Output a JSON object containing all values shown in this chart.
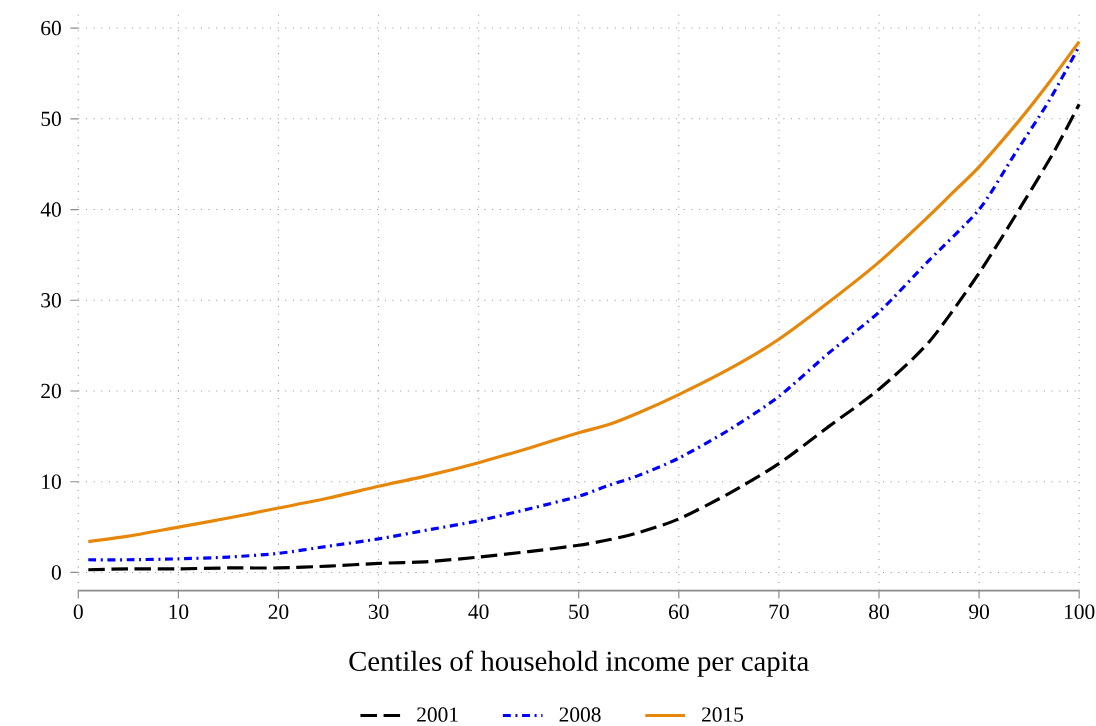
{
  "chart_data": {
    "type": "line",
    "xlabel": "Centiles of household income per capita",
    "xlim": [
      0,
      100
    ],
    "ylim": [
      -2,
      62
    ],
    "xticks": [
      0,
      10,
      20,
      30,
      40,
      50,
      60,
      70,
      80,
      90,
      100
    ],
    "yticks": [
      0,
      10,
      20,
      30,
      40,
      50,
      60
    ],
    "grid": true,
    "legend": "bottom",
    "marker": "none",
    "series": [
      {
        "name": "2001",
        "color": "#000000",
        "line_style": "dashed",
        "x": [
          1,
          5,
          10,
          15,
          20,
          25,
          30,
          35,
          40,
          45,
          50,
          53,
          56,
          60,
          65,
          70,
          75,
          80,
          85,
          90,
          94.5,
          97.5,
          100
        ],
        "values": [
          0.3,
          0.4,
          0.4,
          0.5,
          0.5,
          0.7,
          1.0,
          1.2,
          1.7,
          2.3,
          3.0,
          3.6,
          4.4,
          5.9,
          8.7,
          12.0,
          16.1,
          20.2,
          25.4,
          33.0,
          40.9,
          46.4,
          51.6
        ]
      },
      {
        "name": "2008",
        "color": "#0000ff",
        "line_style": "dashdot",
        "x": [
          1,
          5,
          10,
          15,
          20,
          25,
          30,
          35,
          40,
          45,
          50,
          53,
          56,
          60,
          65,
          70,
          75,
          80,
          85,
          90,
          93.5,
          97,
          100
        ],
        "values": [
          1.4,
          1.4,
          1.5,
          1.7,
          2.1,
          2.9,
          3.7,
          4.7,
          5.7,
          7.0,
          8.4,
          9.6,
          10.7,
          12.6,
          15.7,
          19.4,
          24.2,
          28.7,
          34.4,
          40.0,
          46.0,
          52.0,
          58.0
        ]
      },
      {
        "name": "2015",
        "color": "#e6870a",
        "line_style": "solid",
        "x": [
          1,
          5,
          10,
          15,
          20,
          25,
          30,
          35,
          40,
          45,
          50,
          53,
          56,
          60,
          65,
          70,
          75,
          80,
          85,
          87.5,
          90,
          94,
          97,
          100
        ],
        "values": [
          3.4,
          4.0,
          5.0,
          6.0,
          7.1,
          8.2,
          9.5,
          10.7,
          12.1,
          13.7,
          15.4,
          16.3,
          17.6,
          19.6,
          22.4,
          25.7,
          29.8,
          34.2,
          39.3,
          42.0,
          44.7,
          49.8,
          54.0,
          58.5
        ]
      }
    ]
  }
}
